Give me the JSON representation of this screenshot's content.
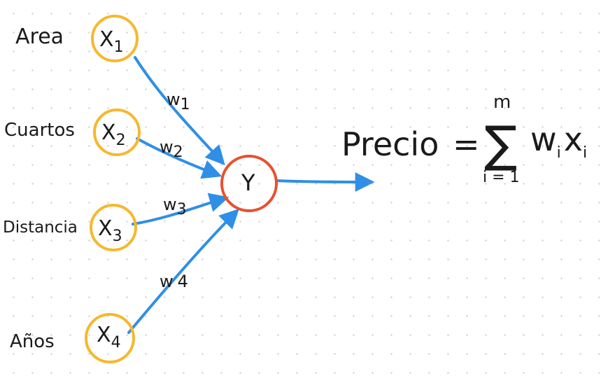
{
  "diagram": {
    "inputs": [
      {
        "label": "Area",
        "node": "X",
        "sub": "1",
        "weight": "w",
        "weight_sub": "1"
      },
      {
        "label": "Cuartos",
        "node": "X",
        "sub": "2",
        "weight": "w",
        "weight_sub": "2"
      },
      {
        "label": "Distancia",
        "node": "X",
        "sub": "3",
        "weight": "w",
        "weight_sub": "3"
      },
      {
        "label": "Años",
        "node": "X",
        "sub": "4",
        "weight": "w",
        "weight_sub": "4"
      }
    ],
    "output_node": "Y",
    "formula": {
      "lhs": "Precio",
      "equals": "=",
      "sum_symbol": "∑",
      "upper": "m",
      "lower": "i = 1",
      "term_w": "w",
      "term_w_sub": "i",
      "term_x": "x",
      "term_x_sub": "i"
    },
    "colors": {
      "input_circle": "#f5b82e",
      "output_circle": "#e8502f",
      "arrow": "#2f8fe6",
      "ink": "#1a1a1a"
    }
  }
}
